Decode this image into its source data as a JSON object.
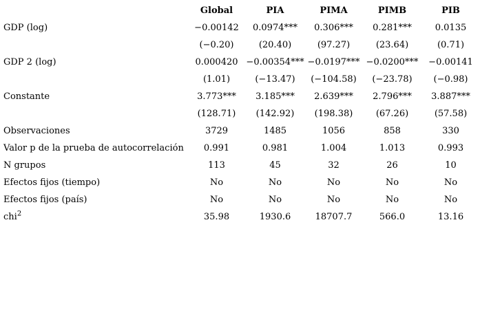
{
  "table": {
    "columns": [
      "",
      "Global",
      "PIA",
      "PIMA",
      "PIMB",
      "PIB"
    ],
    "rows": [
      {
        "label": "GDP (log)",
        "values": [
          "−0.00142",
          "0.0974***",
          "0.306***",
          "0.281***",
          "0.0135"
        ]
      },
      {
        "label": "",
        "values": [
          "(−0.20)",
          "(20.40)",
          "(97.27)",
          "(23.64)",
          "(0.71)"
        ]
      },
      {
        "label": "GDP 2 (log)",
        "values": [
          "0.000420",
          "−0.00354***",
          "−0.0197***",
          "−0.0200***",
          "−0.00141"
        ]
      },
      {
        "label": "",
        "values": [
          "(1.01)",
          "(−13.47)",
          "(−104.58)",
          "(−23.78)",
          "(−0.98)"
        ]
      },
      {
        "label": "Constante",
        "values": [
          "3.773***",
          "3.185***",
          "2.639***",
          "2.796***",
          "3.887***"
        ]
      },
      {
        "label": "",
        "values": [
          "(128.71)",
          "(142.92)",
          "(198.38)",
          "(67.26)",
          "(57.58)"
        ]
      },
      {
        "label": "Observaciones",
        "values": [
          "3729",
          "1485",
          "1056",
          "858",
          "330"
        ]
      },
      {
        "label": "Valor p de la prueba de autocorrelación",
        "values": [
          "0.991",
          "0.981",
          "1.004",
          "1.013",
          "0.993"
        ]
      },
      {
        "label": "N grupos",
        "values": [
          "113",
          "45",
          "32",
          "26",
          "10"
        ]
      },
      {
        "label": "Efectos fijos (tiempo)",
        "values": [
          "No",
          "No",
          "No",
          "No",
          "No"
        ]
      },
      {
        "label": "Efectos fijos (país)",
        "values": [
          "No",
          "No",
          "No",
          "No",
          "No"
        ]
      },
      {
        "label": "chi",
        "label_sup": "2",
        "values": [
          "35.98",
          "1930.6",
          "18707.7",
          "566.0",
          "13.16"
        ]
      }
    ]
  }
}
